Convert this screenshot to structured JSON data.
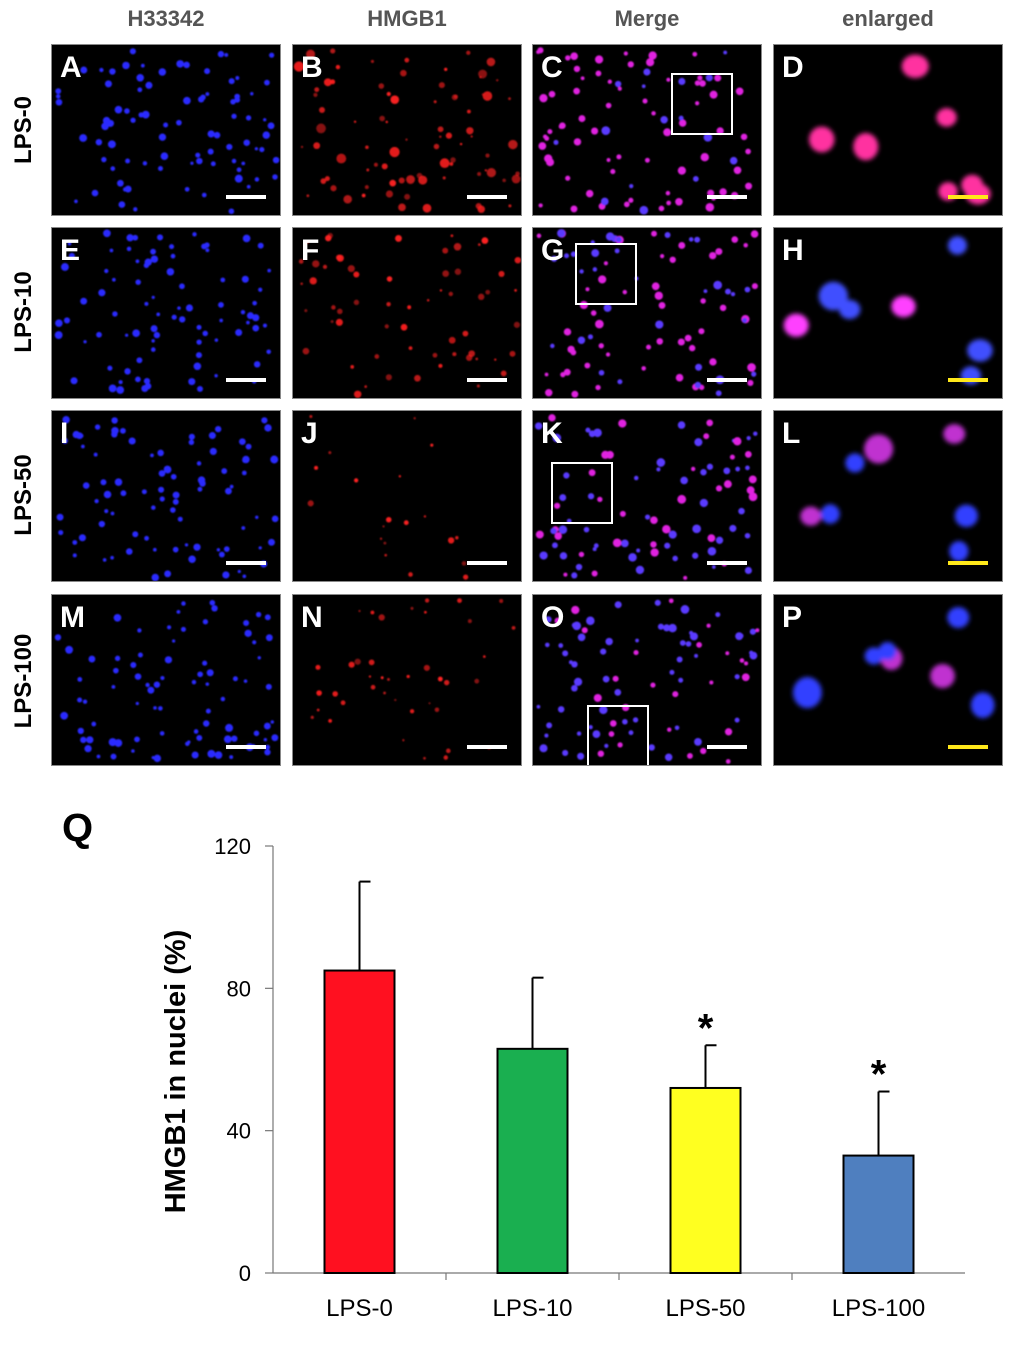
{
  "figure": {
    "column_headers": [
      "H33342",
      "HMGB1",
      "Merge",
      "enlarged"
    ],
    "row_labels": [
      "LPS-0",
      "LPS-10",
      "LPS-50",
      "LPS-100"
    ],
    "panel_letters": [
      [
        "A",
        "B",
        "C",
        "D"
      ],
      [
        "E",
        "F",
        "G",
        "H"
      ],
      [
        "I",
        "J",
        "K",
        "L"
      ],
      [
        "M",
        "N",
        "O",
        "P"
      ]
    ],
    "chart_letter": "Q",
    "colors": {
      "nucleus_blue": "#2a2aff",
      "hmgb1_red": "#ff2020",
      "merge_magenta": "#e020e0",
      "scalebar_white": "#ffffff",
      "scalebar_yellow": "#ffe81a"
    }
  },
  "chart_data": {
    "type": "bar",
    "categories": [
      "LPS-0",
      "LPS-10",
      "LPS-50",
      "LPS-100"
    ],
    "values": [
      85,
      63,
      52,
      33
    ],
    "error": [
      25,
      20,
      12,
      18
    ],
    "significance": [
      "",
      "",
      "*",
      "*"
    ],
    "bar_colors": [
      "#ff1020",
      "#1aaf50",
      "#ffff20",
      "#4f7fbf"
    ],
    "xlabel": "",
    "ylabel": "HMGB1 in nuclei (%)",
    "ylim": [
      0,
      120
    ],
    "yticks": [
      0,
      40,
      80,
      120
    ],
    "grid": false
  }
}
